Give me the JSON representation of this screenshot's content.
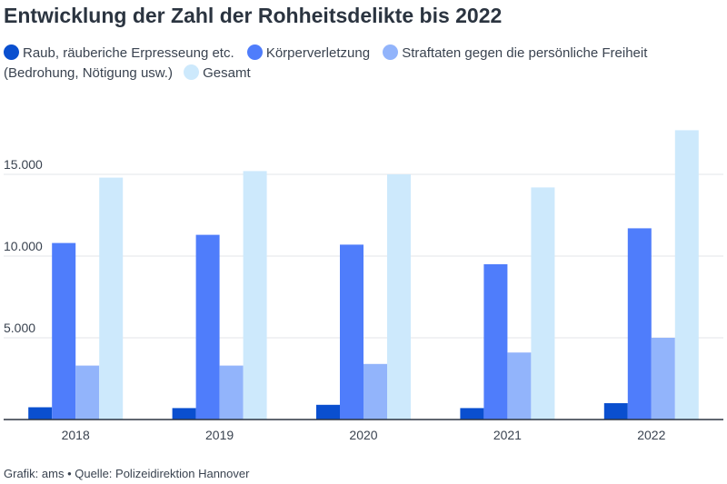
{
  "chart_data": {
    "type": "bar",
    "title": "Entwicklung der Zahl der Rohheitsdelikte bis 2022",
    "categories": [
      "2018",
      "2019",
      "2020",
      "2021",
      "2022"
    ],
    "series": [
      {
        "name": "Raub, räuberiche Erpresseung etc.",
        "color": "#0a4fcf",
        "values": [
          750,
          700,
          900,
          700,
          1000
        ]
      },
      {
        "name": "Körperverletzung",
        "color": "#4f7dfb",
        "values": [
          10800,
          11300,
          10700,
          9500,
          11700
        ]
      },
      {
        "name": "Straftaten gegen die persönliche Freiheit (Bedrohung, Nötigung usw.)",
        "color": "#92b4fb",
        "values": [
          3300,
          3300,
          3400,
          4100,
          5000
        ]
      },
      {
        "name": "Gesamt",
        "color": "#cde9fc",
        "values": [
          14800,
          15200,
          15000,
          14200,
          17700
        ]
      }
    ],
    "y_ticks": [
      {
        "value": 5000,
        "label": "5.000"
      },
      {
        "value": 10000,
        "label": "10.000"
      },
      {
        "value": 15000,
        "label": "15.000"
      }
    ],
    "ylim": [
      0,
      18000
    ],
    "grid": true,
    "legend_position": "top-left",
    "source": "Grafik: ams • Quelle: Polizeidirektion Hannover"
  }
}
